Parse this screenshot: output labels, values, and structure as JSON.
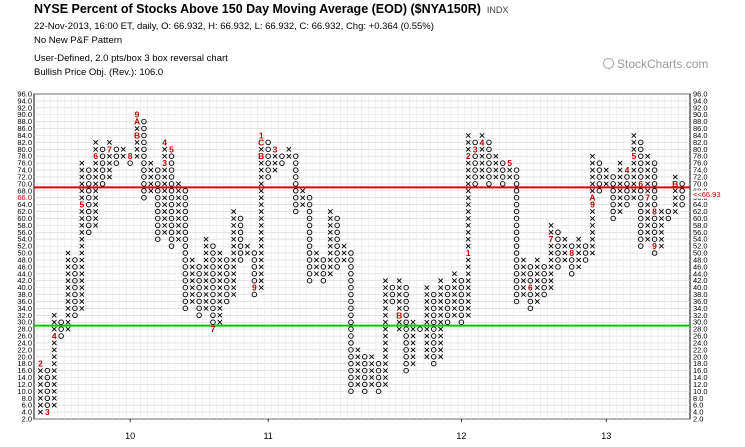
{
  "header": {
    "title": "NYSE Percent of Stocks Above 150 Day Moving Average (EOD) ($NYA150R)",
    "exchange": "INDX",
    "line1": "22-Nov-2013, 16:00 ET, daily, O: 66.932, H: 66.932, L: 66.932, C: 66.932, Chg: +0.364 (0.55%)",
    "line2": "No New P&F Pattern",
    "line3": "User-Defined, 2.0 pts/box 3 box reversal chart",
    "line4": "Bullish Price Obj. (Rev.): 106.0",
    "watermark": "StockCharts.com"
  },
  "chart_data": {
    "type": "point_and_figure",
    "box_size": 2.0,
    "reversal": 3,
    "ylim": [
      2.0,
      96.0
    ],
    "y_ticks": [
      "2.0",
      "4.0",
      "6.0",
      "8.0",
      "10.0",
      "12.0",
      "14.0",
      "16.0",
      "18.0",
      "20.0",
      "22.0",
      "24.0",
      "26.0",
      "28.0",
      "30.0",
      "32.0",
      "34.0",
      "36.0",
      "38.0",
      "40.0",
      "42.0",
      "44.0",
      "46.0",
      "48.0",
      "50.0",
      "52.0",
      "54.0",
      "56.0",
      "58.0",
      "60.0",
      "62.0",
      "64.0",
      "66.0",
      "68.0",
      "70.0",
      "72.0",
      "74.0",
      "76.0",
      "78.0",
      "80.0",
      "82.0",
      "84.0",
      "86.0",
      "88.0",
      "90.0",
      "92.0",
      "94.0",
      "96.0"
    ],
    "x_labels": [
      {
        "label": "10",
        "column": 13
      },
      {
        "label": "11",
        "column": 33
      },
      {
        "label": "12",
        "column": 61
      },
      {
        "label": "13",
        "column": 82
      }
    ],
    "last_price": 66.93,
    "last_price_label": "<<66.93",
    "left_price_label": "66.0",
    "reference_lines": [
      {
        "value": 69,
        "color": "#e00000"
      },
      {
        "value": 29,
        "color": "#00cc00"
      }
    ],
    "columns": [
      {
        "type": "X",
        "low": 4,
        "high": 18
      },
      {
        "type": "O",
        "low": 4,
        "high": 16
      },
      {
        "type": "X",
        "low": 6,
        "high": 32
      },
      {
        "type": "O",
        "low": 26,
        "high": 30
      },
      {
        "type": "X",
        "low": 28,
        "high": 50
      },
      {
        "type": "O",
        "low": 32,
        "high": 48
      },
      {
        "type": "X",
        "low": 34,
        "high": 76
      },
      {
        "type": "O",
        "low": 56,
        "high": 74
      },
      {
        "type": "X",
        "low": 58,
        "high": 82
      },
      {
        "type": "O",
        "low": 70,
        "high": 80
      },
      {
        "type": "X",
        "low": 72,
        "high": 82
      },
      {
        "type": "O",
        "low": 76,
        "high": 80
      },
      {
        "type": "X",
        "low": 78,
        "high": 80
      },
      {
        "type": "O",
        "low": 76,
        "high": 78
      },
      {
        "type": "X",
        "low": 78,
        "high": 90
      },
      {
        "type": "O",
        "low": 66,
        "high": 88
      },
      {
        "type": "X",
        "low": 68,
        "high": 76
      },
      {
        "type": "O",
        "low": 54,
        "high": 74
      },
      {
        "type": "X",
        "low": 56,
        "high": 82
      },
      {
        "type": "O",
        "low": 52,
        "high": 80
      },
      {
        "type": "X",
        "low": 54,
        "high": 70
      },
      {
        "type": "O",
        "low": 34,
        "high": 68
      },
      {
        "type": "X",
        "low": 36,
        "high": 48
      },
      {
        "type": "O",
        "low": 32,
        "high": 46
      },
      {
        "type": "X",
        "low": 34,
        "high": 54
      },
      {
        "type": "O",
        "low": 28,
        "high": 52
      },
      {
        "type": "X",
        "low": 30,
        "high": 50
      },
      {
        "type": "O",
        "low": 36,
        "high": 48
      },
      {
        "type": "X",
        "low": 38,
        "high": 62
      },
      {
        "type": "O",
        "low": 48,
        "high": 60
      },
      {
        "type": "X",
        "low": 50,
        "high": 52
      },
      {
        "type": "O",
        "low": 38,
        "high": 50
      },
      {
        "type": "X",
        "low": 40,
        "high": 84
      },
      {
        "type": "O",
        "low": 72,
        "high": 82
      },
      {
        "type": "X",
        "low": 74,
        "high": 80
      },
      {
        "type": "O",
        "low": 76,
        "high": 78
      },
      {
        "type": "X",
        "low": 78,
        "high": 80
      },
      {
        "type": "O",
        "low": 62,
        "high": 78
      },
      {
        "type": "X",
        "low": 64,
        "high": 68
      },
      {
        "type": "O",
        "low": 42,
        "high": 66
      },
      {
        "type": "X",
        "low": 44,
        "high": 50
      },
      {
        "type": "O",
        "low": 42,
        "high": 48
      },
      {
        "type": "X",
        "low": 44,
        "high": 62
      },
      {
        "type": "O",
        "low": 46,
        "high": 60
      },
      {
        "type": "X",
        "low": 48,
        "high": 52
      },
      {
        "type": "O",
        "low": 10,
        "high": 50
      },
      {
        "type": "X",
        "low": 12,
        "high": 22
      },
      {
        "type": "O",
        "low": 10,
        "high": 20
      },
      {
        "type": "X",
        "low": 12,
        "high": 20
      },
      {
        "type": "O",
        "low": 10,
        "high": 18
      },
      {
        "type": "X",
        "low": 12,
        "high": 42
      },
      {
        "type": "O",
        "low": 36,
        "high": 40
      },
      {
        "type": "X",
        "low": 28,
        "high": 42
      },
      {
        "type": "O",
        "low": 16,
        "high": 40
      },
      {
        "type": "X",
        "low": 18,
        "high": 30
      },
      {
        "type": "O",
        "low": 28,
        "high": 28
      },
      {
        "type": "X",
        "low": 20,
        "high": 40
      },
      {
        "type": "O",
        "low": 18,
        "high": 38
      },
      {
        "type": "X",
        "low": 20,
        "high": 42
      },
      {
        "type": "O",
        "low": 30,
        "high": 40
      },
      {
        "type": "X",
        "low": 32,
        "high": 44
      },
      {
        "type": "O",
        "low": 30,
        "high": 42
      },
      {
        "type": "X",
        "low": 32,
        "high": 84
      },
      {
        "type": "O",
        "low": 70,
        "high": 82
      },
      {
        "type": "X",
        "low": 72,
        "high": 84
      },
      {
        "type": "O",
        "low": 70,
        "high": 82
      },
      {
        "type": "X",
        "low": 72,
        "high": 78
      },
      {
        "type": "O",
        "low": 70,
        "high": 76
      },
      {
        "type": "X",
        "low": 72,
        "high": 76
      },
      {
        "type": "O",
        "low": 36,
        "high": 74
      },
      {
        "type": "X",
        "low": 38,
        "high": 48
      },
      {
        "type": "O",
        "low": 34,
        "high": 46
      },
      {
        "type": "X",
        "low": 36,
        "high": 48
      },
      {
        "type": "O",
        "low": 38,
        "high": 46
      },
      {
        "type": "X",
        "low": 40,
        "high": 58
      },
      {
        "type": "O",
        "low": 46,
        "high": 56
      },
      {
        "type": "X",
        "low": 48,
        "high": 54
      },
      {
        "type": "O",
        "low": 44,
        "high": 52
      },
      {
        "type": "X",
        "low": 46,
        "high": 54
      },
      {
        "type": "O",
        "low": 48,
        "high": 52
      },
      {
        "type": "X",
        "low": 50,
        "high": 78
      },
      {
        "type": "O",
        "low": 68,
        "high": 76
      },
      {
        "type": "X",
        "low": 70,
        "high": 74
      },
      {
        "type": "O",
        "low": 60,
        "high": 72
      },
      {
        "type": "X",
        "low": 62,
        "high": 76
      },
      {
        "type": "O",
        "low": 64,
        "high": 74
      },
      {
        "type": "X",
        "low": 66,
        "high": 84
      },
      {
        "type": "O",
        "low": 52,
        "high": 82
      },
      {
        "type": "X",
        "low": 54,
        "high": 78
      },
      {
        "type": "O",
        "low": 50,
        "high": 76
      },
      {
        "type": "X",
        "low": 52,
        "high": 62
      },
      {
        "type": "O",
        "low": 60,
        "high": 62
      },
      {
        "type": "X",
        "low": 62,
        "high": 72
      },
      {
        "type": "O",
        "low": 64,
        "high": 70
      }
    ],
    "month_marks": [
      {
        "column": 0,
        "value": 18,
        "label": "2"
      },
      {
        "column": 1,
        "value": 4,
        "label": "3"
      },
      {
        "column": 2,
        "value": 26,
        "label": "4"
      },
      {
        "column": 6,
        "value": 64,
        "label": "5"
      },
      {
        "column": 8,
        "value": 78,
        "label": "6"
      },
      {
        "column": 10,
        "value": 80,
        "label": "7"
      },
      {
        "column": 13,
        "value": 78,
        "label": "8"
      },
      {
        "column": 14,
        "value": 90,
        "label": "9"
      },
      {
        "column": 14,
        "value": 88,
        "label": "A"
      },
      {
        "column": 14,
        "value": 84,
        "label": "B"
      },
      {
        "column": 18,
        "value": 82,
        "label": "4"
      },
      {
        "column": 18,
        "value": 76,
        "label": "3"
      },
      {
        "column": 19,
        "value": 80,
        "label": "5"
      },
      {
        "column": 25,
        "value": 28,
        "label": "7"
      },
      {
        "column": 26,
        "value": 56,
        "label": "8"
      },
      {
        "column": 31,
        "value": 40,
        "label": "9"
      },
      {
        "column": 32,
        "value": 84,
        "label": "1"
      },
      {
        "column": 32,
        "value": 78,
        "label": "B"
      },
      {
        "column": 32,
        "value": 82,
        "label": "C"
      },
      {
        "column": 34,
        "value": 80,
        "label": "3"
      },
      {
        "column": 35,
        "value": 80,
        "label": "4"
      },
      {
        "column": 39,
        "value": 78,
        "label": "5"
      },
      {
        "column": 41,
        "value": 66,
        "label": "6"
      },
      {
        "column": 45,
        "value": 62,
        "label": "7"
      },
      {
        "column": 46,
        "value": 40,
        "label": "8"
      },
      {
        "column": 49,
        "value": 22,
        "label": "9"
      },
      {
        "column": 50,
        "value": 8,
        "label": "A"
      },
      {
        "column": 52,
        "value": 32,
        "label": "B"
      },
      {
        "column": 55,
        "value": 40,
        "label": "C"
      },
      {
        "column": 62,
        "value": 50,
        "label": "1"
      },
      {
        "column": 62,
        "value": 78,
        "label": "2"
      },
      {
        "column": 63,
        "value": 80,
        "label": "3"
      },
      {
        "column": 64,
        "value": 82,
        "label": "4"
      },
      {
        "column": 68,
        "value": 76,
        "label": "5"
      },
      {
        "column": 71,
        "value": 40,
        "label": "6"
      },
      {
        "column": 74,
        "value": 54,
        "label": "7"
      },
      {
        "column": 77,
        "value": 50,
        "label": "8"
      },
      {
        "column": 80,
        "value": 64,
        "label": "9"
      },
      {
        "column": 80,
        "value": 66,
        "label": "A"
      },
      {
        "column": 82,
        "value": 64,
        "label": "B"
      },
      {
        "column": 82,
        "value": 80,
        "label": "C"
      },
      {
        "column": 84,
        "value": 82,
        "label": "2"
      },
      {
        "column": 85,
        "value": 74,
        "label": "4"
      },
      {
        "column": 86,
        "value": 78,
        "label": "5"
      },
      {
        "column": 87,
        "value": 70,
        "label": "6"
      },
      {
        "column": 88,
        "value": 66,
        "label": "7"
      },
      {
        "column": 89,
        "value": 62,
        "label": "8"
      },
      {
        "column": 89,
        "value": 52,
        "label": "9"
      },
      {
        "column": 91,
        "value": 64,
        "label": "A"
      },
      {
        "column": 92,
        "value": 70,
        "label": "B"
      }
    ]
  }
}
